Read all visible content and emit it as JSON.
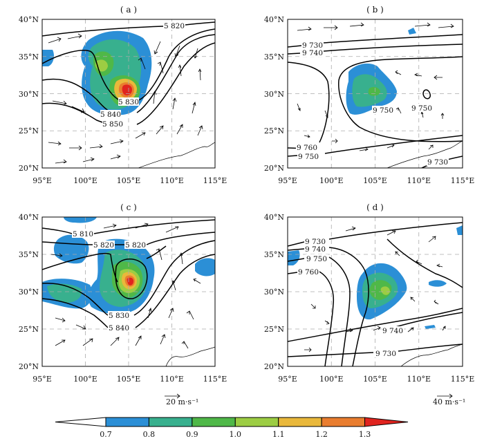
{
  "figure": {
    "colorbar": {
      "ticks": [
        "0.7",
        "0.8",
        "0.9",
        "1.0",
        "1.1",
        "1.2",
        "1.3"
      ],
      "colors": [
        "#2b8fd6",
        "#38b08e",
        "#4fb848",
        "#9ccd43",
        "#e9b83b",
        "#e97d2f",
        "#e0241f"
      ]
    },
    "reference_vectors": [
      "20 m·s⁻¹",
      "40 m·s⁻¹"
    ]
  },
  "chart_data": [
    {
      "type": "contour",
      "panel_label": "( a )",
      "xlim": [
        95,
        115
      ],
      "ylim": [
        20,
        40
      ],
      "x_ticks": [
        "95°E",
        "100°E",
        "105°E",
        "110°E",
        "115°E"
      ],
      "y_ticks": [
        "40°N",
        "35°N",
        "30°N",
        "25°N",
        "20°N"
      ],
      "contour_labels": [
        {
          "text": "5 820",
          "lon": 111.2,
          "lat": 38.9
        },
        {
          "text": "5 830",
          "lon": 105.4,
          "lat": 29.0
        },
        {
          "text": "5 840",
          "lon": 102.7,
          "lat": 27.1
        },
        {
          "text": "5 850",
          "lon": 103.0,
          "lat": 25.8
        }
      ],
      "shading_max": [
        {
          "lon": 105.4,
          "lat": 30.6,
          "value": 1.3
        }
      ]
    },
    {
      "type": "contour",
      "panel_label": "( b )",
      "xlim": [
        95,
        115
      ],
      "ylim": [
        20,
        40
      ],
      "x_ticks": [
        "95°E",
        "100°E",
        "105°E",
        "110°E",
        "115°E"
      ],
      "y_ticks": [
        "40°N",
        "35°N",
        "30°N",
        "25°N",
        "20°N"
      ],
      "contour_labels": [
        {
          "text": "9 730",
          "lon": 98.5,
          "lat": 36.4
        },
        {
          "text": "9 740",
          "lon": 98.4,
          "lat": 35.5
        },
        {
          "text": "9 750",
          "lon": 105.5,
          "lat": 28.5
        },
        {
          "text": "9 750",
          "lon": 110.0,
          "lat": 28.8
        },
        {
          "text": "9 760",
          "lon": 96.7,
          "lat": 23.0
        },
        {
          "text": "9 750",
          "lon": 96.7,
          "lat": 21.6
        },
        {
          "text": "9 730",
          "lon": 111.7,
          "lat": 20.9
        }
      ],
      "shading_max": [
        {
          "lon": 104.8,
          "lat": 30.1,
          "value": 0.9
        }
      ]
    },
    {
      "type": "contour",
      "panel_label": "( c )",
      "xlim": [
        95,
        115
      ],
      "ylim": [
        20,
        40
      ],
      "x_ticks": [
        "95°E",
        "100°E",
        "105°E",
        "110°E",
        "115°E"
      ],
      "y_ticks": [
        "40°N",
        "35°N",
        "30°N",
        "25°N",
        "20°N"
      ],
      "contour_labels": [
        {
          "text": "5 810",
          "lon": 99.0,
          "lat": 36.6
        },
        {
          "text": "5 820",
          "lon": 102.5,
          "lat": 33.7
        },
        {
          "text": "5 820",
          "lon": 106.0,
          "lat": 33.7
        },
        {
          "text": "5 830",
          "lon": 104.0,
          "lat": 27.6
        },
        {
          "text": "5 840",
          "lon": 104.0,
          "lat": 25.4
        }
      ],
      "shading_max": [
        {
          "lon": 105.2,
          "lat": 30.9,
          "value": 1.3
        }
      ]
    },
    {
      "type": "contour",
      "panel_label": "( d )",
      "xlim": [
        95,
        115
      ],
      "ylim": [
        20,
        40
      ],
      "x_ticks": [
        "95°E",
        "100°E",
        "105°E",
        "110°E",
        "115°E"
      ],
      "y_ticks": [
        "40°N",
        "35°N",
        "30°N",
        "25°N",
        "20°N"
      ],
      "contour_labels": [
        {
          "text": "9 730",
          "lon": 98.0,
          "lat": 37.0
        },
        {
          "text": "9 740",
          "lon": 98.0,
          "lat": 36.0
        },
        {
          "text": "9 750",
          "lon": 98.5,
          "lat": 34.7
        },
        {
          "text": "9 760",
          "lon": 97.6,
          "lat": 32.9
        },
        {
          "text": "9 740",
          "lon": 107.3,
          "lat": 24.8
        },
        {
          "text": "9 730",
          "lon": 105.8,
          "lat": 21.6
        }
      ],
      "shading_max": [
        {
          "lon": 105.2,
          "lat": 29.8,
          "value": 1.0
        }
      ]
    }
  ]
}
